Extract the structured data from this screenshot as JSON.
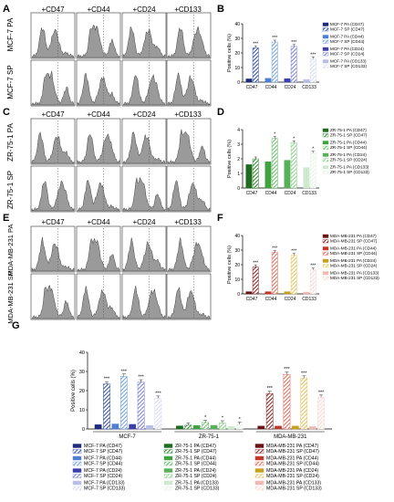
{
  "panels": {
    "A": "A",
    "B": "B",
    "C": "C",
    "D": "D",
    "E": "E",
    "F": "F",
    "G": "G"
  },
  "markers": [
    "+CD47",
    "+CD44",
    "+CD24",
    "+CD133"
  ],
  "row_labels": {
    "mcf_pa": "MCF-7 PA",
    "mcf_sp": "MCF-7 SP",
    "zr_pa": "ZR-75-1 PA",
    "zr_sp": "ZR-75-1 SP",
    "mda_pa": "MDA-MB-231 PA",
    "mda_sp": "MDA-MB-231 SP"
  },
  "colors": {
    "mcf": [
      "#1f2a7a",
      "#2e4ea8",
      "#4f7fd0",
      "#6fa0e0",
      "#3b3fae",
      "#7a7fd8",
      "#b9bde8",
      "#d7dbf2"
    ],
    "zr": [
      "#1f6b1f",
      "#2e8a2e",
      "#3fa33f",
      "#66c066",
      "#58b058",
      "#8ad08a",
      "#cfe9cf",
      "#e3f3e3"
    ],
    "mda": [
      "#6b1414",
      "#8a1f1f",
      "#c0392b",
      "#e06a5a",
      "#c9a020",
      "#e8c25a",
      "#f0b8b0",
      "#f8d6d0"
    ],
    "hist_fill": "#9a9a9a"
  },
  "chart_data": [
    {
      "panel": "B",
      "type": "bar",
      "ylabel": "Positive cells (%)",
      "ylim": [
        0,
        40
      ],
      "yticks": [
        0,
        10,
        20,
        30,
        40
      ],
      "categories": [
        "CD47",
        "CD44",
        "CD24",
        "CD133"
      ],
      "series": [
        {
          "name": "MCF-7 PA (CD47)",
          "values": [
            2.2,
            2.6,
            2.4,
            1.8
          ]
        },
        {
          "name": "MCF-7 SP (CD47)",
          "values": [
            23.5,
            27.5,
            24.5,
            16.0
          ]
        }
      ],
      "annotations": [
        "***",
        "***",
        "***",
        "***"
      ],
      "legend": [
        "MCF-7 PA (CD47)",
        "MCF-7 SP (CD47)",
        "MCF-7 PA (CD44)",
        "MCF-7 SP (CD44)",
        "MCF-7 PA (CD24)",
        "MCF-7 SP (CD24)",
        "MCF-7 PA (CD133)",
        "MCF-7 SP (CD133)"
      ],
      "legend_placement": "right"
    },
    {
      "panel": "D",
      "type": "bar",
      "ylabel": "Positive cells (%)",
      "ylim": [
        0,
        4
      ],
      "yticks": [
        0,
        1,
        2,
        3,
        4
      ],
      "categories": [
        "CD47",
        "CD44",
        "CD24",
        "CD133"
      ],
      "series": [
        {
          "name": "ZR-75-1 PA (CD47)",
          "values": [
            1.6,
            1.8,
            1.9,
            1.4
          ]
        },
        {
          "name": "ZR-75-1 SP (CD47)",
          "values": [
            2.0,
            3.4,
            3.1,
            2.4
          ]
        }
      ],
      "annotations": [
        "",
        "*",
        "*",
        "*"
      ],
      "legend": [
        "ZR-75-1 PA (CD47)",
        "ZR-75-1 SP (CD47)",
        "ZR-75-1 PA (CD44)",
        "ZR-75-1 SP (CD44)",
        "ZR-75-1 PA (CD24)",
        "ZR-75-1 SP (CD24)",
        "ZR-75-1 PA (CD133)",
        "ZR-75-1 SP (CD133)"
      ],
      "legend_placement": "right"
    },
    {
      "panel": "F",
      "type": "bar",
      "ylabel": "Positive cells (%)",
      "ylim": [
        0,
        40
      ],
      "yticks": [
        0,
        10,
        20,
        30,
        40
      ],
      "categories": [
        "CD47",
        "CD44",
        "CD24",
        "CD133"
      ],
      "series": [
        {
          "name": "MDA-MB-231 PA (CD47)",
          "values": [
            1.5,
            1.5,
            1.5,
            1.2
          ]
        },
        {
          "name": "MDA-MB-231 SP (CD47)",
          "values": [
            18.5,
            28.5,
            26.5,
            16.5
          ]
        }
      ],
      "annotations": [
        "***",
        "***",
        "***",
        "***"
      ],
      "legend": [
        "MDA-MB-231 PA (CD47)",
        "MDA-MB-231 SP (CD47)",
        "MDA-MB-231 PA (CD44)",
        "MDA-MB-231 SP (CD44)",
        "MDA-MB-231 PA (CD24)",
        "MDA-MB-231 SP (CD24)",
        "MDA-MB-231 PA (CD133)",
        "MDA-MB-231 SP (CD133)"
      ],
      "legend_placement": "right"
    },
    {
      "panel": "G",
      "type": "bar",
      "ylabel": "Positive cells (%)",
      "ylim": [
        0,
        40
      ],
      "yticks": [
        0,
        10,
        20,
        30,
        40
      ],
      "groups": [
        "MCF-7",
        "ZR-75-1",
        "MDA-MB-231"
      ],
      "values": [
        [
          2.2,
          23.5,
          2.6,
          27.5,
          2.4,
          24.5,
          1.8,
          16.0
        ],
        [
          1.6,
          2.0,
          1.8,
          3.4,
          1.9,
          3.1,
          1.4,
          2.4
        ],
        [
          1.5,
          18.5,
          1.5,
          28.5,
          1.5,
          26.5,
          1.2,
          16.5
        ]
      ],
      "annotations": [
        [
          "",
          "***",
          "",
          "***",
          "",
          "***",
          "",
          "***"
        ],
        [
          "",
          "",
          "",
          "*",
          "",
          "*",
          "",
          "*"
        ],
        [
          "",
          "***",
          "",
          "***",
          "",
          "***",
          "",
          "***"
        ]
      ],
      "legend": [
        [
          "MCF-7 PA (CD47)",
          "MCF-7 SP (CD47)",
          "MCF-7 PA (CD44)",
          "MCF-7 SP (CD44)",
          "MCF-7 PA (CD24)",
          "MCF-7 SP (CD24)",
          "MCF-7 PA (CD133)",
          "MCF-7 SP (CD133)"
        ],
        [
          "ZR-75-1 PA (CD47)",
          "ZR-75-1 SP (CD47)",
          "ZR-75-1 PA (CD44)",
          "ZR-75-1 SP (CD44)",
          "ZR-75-1 PA (CD24)",
          "ZR-75-1 SP (CD24)",
          "ZR-75-1 PA (CD133)",
          "ZR-75-1 SP (CD133)"
        ],
        [
          "MDA-MB-231 PA (CD47)",
          "MDA-MB-231 SP (CD47)",
          "MDA-MB-231 PA (CD44)",
          "MDA-MB-231 SP (CD44)",
          "MDA-MB-231 PA (CD24)",
          "MDA-MB-231 SP (CD24)",
          "MDA-MB-231 PA (CD133)",
          "MDA-MB-231 SP (CD133)"
        ]
      ],
      "legend_placement": "bottom"
    }
  ]
}
